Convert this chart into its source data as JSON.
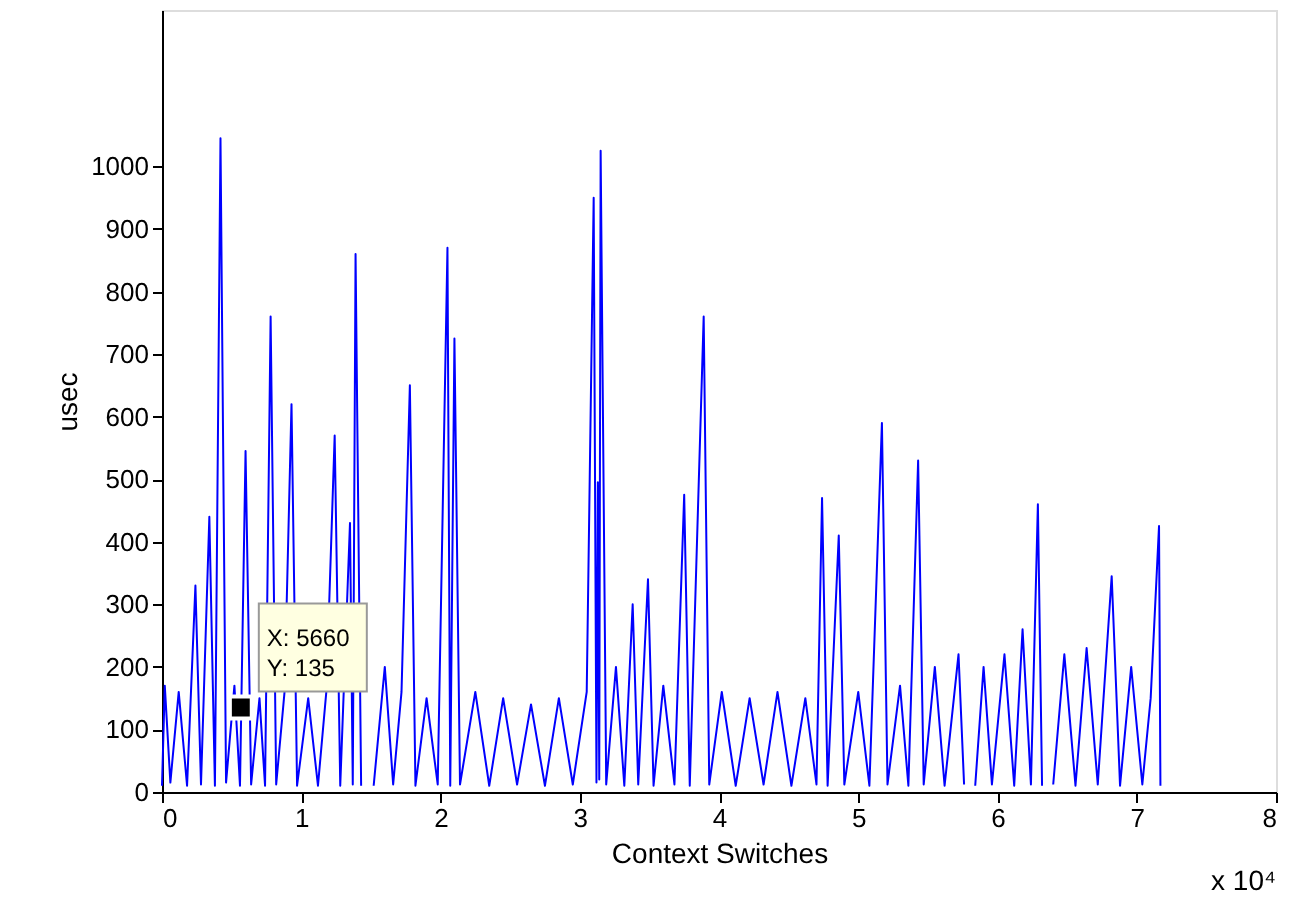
{
  "chart_data": {
    "type": "line",
    "xlabel": "Context Switches",
    "ylabel": "usec",
    "x": [
      0,
      0.02,
      0.06,
      0.12,
      0.18,
      0.24,
      0.28,
      0.34,
      0.38,
      0.42,
      0.46,
      0.52,
      0.56,
      0.6,
      0.64,
      0.7,
      0.74,
      0.78,
      0.82,
      0.88,
      0.93,
      0.97,
      1.05,
      1.12,
      1.18,
      1.24,
      1.28,
      1.35,
      1.37,
      1.39,
      1.43,
      1.48,
      1.52,
      1.6,
      1.66,
      1.72,
      1.78,
      1.82,
      1.9,
      1.98,
      2.05,
      2.07,
      2.1,
      2.14,
      2.25,
      2.35,
      2.45,
      2.55,
      2.65,
      2.75,
      2.85,
      2.95,
      3.05,
      3.1,
      3.12,
      3.13,
      3.14,
      3.15,
      3.19,
      3.26,
      3.32,
      3.38,
      3.42,
      3.49,
      3.53,
      3.6,
      3.68,
      3.75,
      3.79,
      3.89,
      3.93,
      4.02,
      4.12,
      4.22,
      4.32,
      4.42,
      4.52,
      4.62,
      4.7,
      4.74,
      4.78,
      4.86,
      4.9,
      5.0,
      5.08,
      5.17,
      5.21,
      5.3,
      5.36,
      5.43,
      5.47,
      5.55,
      5.62,
      5.72,
      5.76,
      5.8,
      5.84,
      5.9,
      5.96,
      6.05,
      6.12,
      6.18,
      6.24,
      6.29,
      6.32,
      6.35,
      6.4,
      6.48,
      6.56,
      6.64,
      6.72,
      6.82,
      6.88,
      6.96,
      7.04,
      7.1,
      7.16,
      7.17
    ],
    "series": [
      {
        "color": "#0000ff",
        "values": [
          10,
          170,
          15,
          160,
          10,
          330,
          12,
          440,
          10,
          1045,
          15,
          170,
          10,
          545,
          12,
          150,
          10,
          760,
          12,
          160,
          620,
          10,
          150,
          10,
          160,
          570,
          10,
          430,
          12,
          860,
          10,
          null,
          10,
          200,
          12,
          160,
          650,
          10,
          150,
          12,
          870,
          10,
          725,
          12,
          160,
          10,
          150,
          12,
          140,
          10,
          150,
          12,
          160,
          950,
          15,
          495,
          20,
          1025,
          12,
          200,
          10,
          300,
          12,
          340,
          10,
          170,
          12,
          475,
          10,
          760,
          12,
          160,
          10,
          150,
          12,
          160,
          10,
          150,
          12,
          470,
          10,
          410,
          12,
          160,
          10,
          590,
          12,
          170,
          10,
          530,
          12,
          200,
          10,
          220,
          12,
          null,
          10,
          200,
          12,
          220,
          10,
          260,
          12,
          460,
          10,
          null,
          12,
          220,
          10,
          230,
          12,
          345,
          10,
          200,
          12,
          150,
          425,
          10
        ]
      }
    ],
    "xlim": [
      0,
      8
    ],
    "xticks": [
      0,
      1,
      2,
      3,
      4,
      5,
      6,
      7,
      8
    ],
    "ylim": [
      0,
      1250
    ],
    "yticks": [
      0,
      100,
      200,
      300,
      400,
      500,
      600,
      700,
      800,
      900,
      1000
    ],
    "grid": false,
    "line_style": "solid",
    "marker": "none",
    "annotations": [
      {
        "text": "X: 5660\nY: 135",
        "x": 0.566,
        "y": 135
      },
      "x 10⁴"
    ]
  }
}
